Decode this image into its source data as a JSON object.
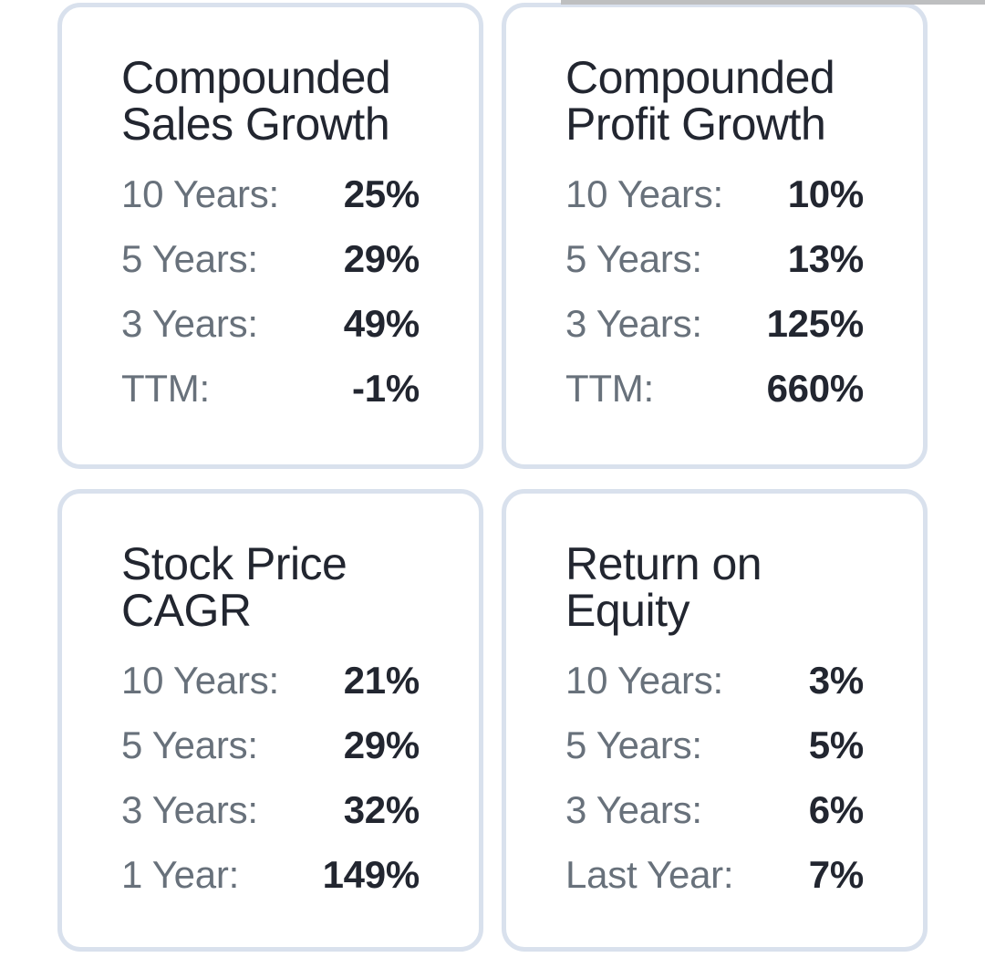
{
  "colors": {
    "page_bg": "#ffffff",
    "card_bg": "#ffffff",
    "card_border": "#d9e1ed",
    "title_text": "#222630",
    "label_text": "#68717b",
    "value_text": "#222630",
    "top_strip": "#bebfc0"
  },
  "cards": [
    {
      "id": "compounded-sales-growth",
      "title": "Compounded Sales Growth",
      "rows": [
        {
          "label": "10 Years:",
          "value": "25%"
        },
        {
          "label": "5 Years:",
          "value": "29%"
        },
        {
          "label": "3 Years:",
          "value": "49%"
        },
        {
          "label": "TTM:",
          "value": "-1%"
        }
      ]
    },
    {
      "id": "compounded-profit-growth",
      "title": "Compounded Profit Growth",
      "rows": [
        {
          "label": "10 Years:",
          "value": "10%"
        },
        {
          "label": "5 Years:",
          "value": "13%"
        },
        {
          "label": "3 Years:",
          "value": "125%"
        },
        {
          "label": "TTM:",
          "value": "660%"
        }
      ]
    },
    {
      "id": "stock-price-cagr",
      "title": "Stock Price CAGR",
      "rows": [
        {
          "label": "10 Years:",
          "value": "21%"
        },
        {
          "label": "5 Years:",
          "value": "29%"
        },
        {
          "label": "3 Years:",
          "value": "32%"
        },
        {
          "label": "1 Year:",
          "value": "149%"
        }
      ]
    },
    {
      "id": "return-on-equity",
      "title": "Return on Equity",
      "rows": [
        {
          "label": "10 Years:",
          "value": "3%"
        },
        {
          "label": "5 Years:",
          "value": "5%"
        },
        {
          "label": "3 Years:",
          "value": "6%"
        },
        {
          "label": "Last Year:",
          "value": "7%"
        }
      ]
    }
  ]
}
